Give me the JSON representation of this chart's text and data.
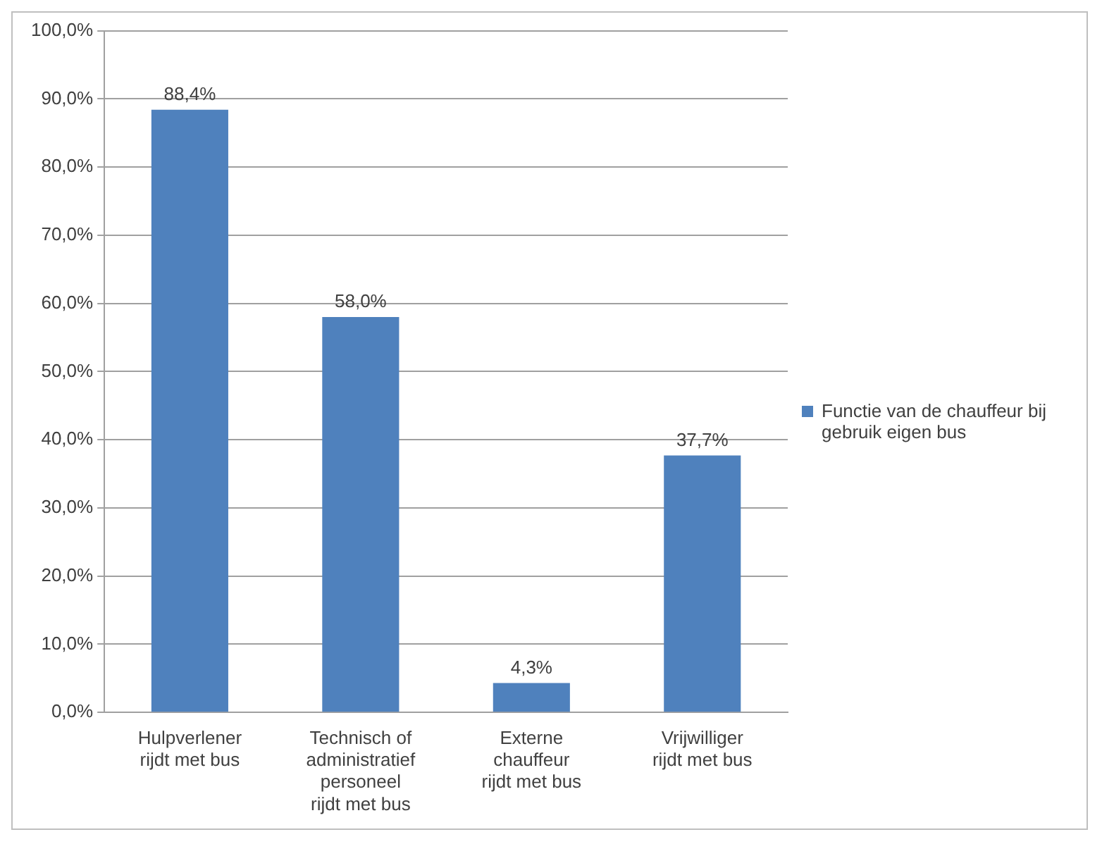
{
  "chart_data": {
    "type": "bar",
    "categories": [
      "Hulpverlener rijdt met bus",
      "Technisch of administratief personeel rijdt met bus",
      "Externe chauffeur rijdt met bus",
      "Vrijwilliger rijdt met bus"
    ],
    "series": [
      {
        "name": "Functie van de chauffeur bij gebruik eigen bus",
        "color": "#4f81bd",
        "values": [
          88.4,
          58.0,
          4.3,
          37.7
        ],
        "value_labels": [
          "88,4%",
          "58,0%",
          "4,3%",
          "37,7%"
        ]
      }
    ],
    "ylim": [
      0,
      100
    ],
    "yticks": [
      {
        "value": 0,
        "label": "0,0%"
      },
      {
        "value": 10,
        "label": "10,0%"
      },
      {
        "value": 20,
        "label": "20,0%"
      },
      {
        "value": 30,
        "label": "30,0%"
      },
      {
        "value": 40,
        "label": "40,0%"
      },
      {
        "value": 50,
        "label": "50,0%"
      },
      {
        "value": 60,
        "label": "60,0%"
      },
      {
        "value": 70,
        "label": "70,0%"
      },
      {
        "value": 80,
        "label": "80,0%"
      },
      {
        "value": 90,
        "label": "90,0%"
      },
      {
        "value": 100,
        "label": "100,0%"
      }
    ],
    "grid": "y",
    "legend": "right"
  }
}
